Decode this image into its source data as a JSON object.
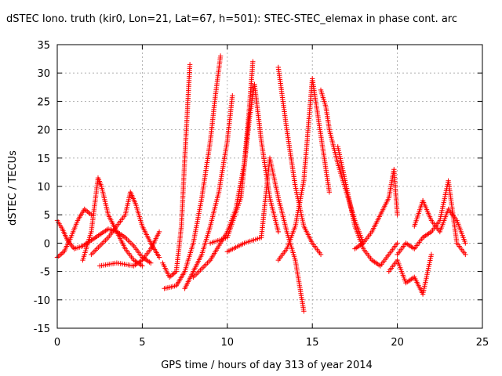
{
  "chart_data": {
    "type": "scatter",
    "title": "dSTEC Iono. truth (kir0, Lon=21, Lat=67, h=501): STEC-STEC_elemax in phase cont. arc",
    "xlabel": "GPS time / hours of day 313 of year 2014",
    "ylabel": "dSTEC  / TECUs",
    "xlim": [
      0,
      25
    ],
    "ylim": [
      -15,
      35
    ],
    "xticks": [
      0,
      5,
      10,
      15,
      20,
      25
    ],
    "yticks": [
      -15,
      -10,
      -5,
      0,
      5,
      10,
      15,
      20,
      25,
      30,
      35
    ],
    "grid": true,
    "marker": "+",
    "color": "#ff0000",
    "series": [
      {
        "x": [
          0.0,
          0.3,
          0.6,
          1.0,
          1.5,
          2.0,
          2.5,
          3.0,
          3.5,
          4.0,
          4.5,
          5.0,
          5.5
        ],
        "y": [
          4.0,
          2.5,
          0.5,
          -1.0,
          -0.5,
          0.5,
          1.5,
          2.5,
          2.0,
          1.0,
          -0.5,
          -2.5,
          -3.5
        ]
      },
      {
        "x": [
          0.0,
          0.4,
          0.8,
          1.2,
          1.6,
          2.0
        ],
        "y": [
          -2.5,
          -1.5,
          1.0,
          4.0,
          6.0,
          5.0
        ]
      },
      {
        "x": [
          1.5,
          2.0,
          2.4,
          2.6,
          3.0,
          3.5,
          4.0,
          4.5,
          5.0
        ],
        "y": [
          -3.0,
          2.0,
          11.5,
          10.0,
          5.0,
          2.0,
          -1.0,
          -3.0,
          -4.0
        ]
      },
      {
        "x": [
          2.0,
          3.0,
          4.0,
          4.3,
          4.6,
          5.0,
          5.5,
          6.0
        ],
        "y": [
          -2.0,
          1.0,
          5.0,
          9.0,
          7.0,
          3.0,
          0.0,
          -2.5
        ]
      },
      {
        "x": [
          2.5,
          3.5,
          4.5,
          5.0,
          5.5,
          6.0
        ],
        "y": [
          -4.0,
          -3.5,
          -4.0,
          -3.0,
          -1.0,
          2.0
        ]
      },
      {
        "x": [
          6.2,
          6.6,
          7.0,
          7.3,
          7.5,
          7.8
        ],
        "y": [
          -3.5,
          -6.0,
          -5.0,
          3.0,
          15.0,
          31.5
        ]
      },
      {
        "x": [
          6.3,
          7.0,
          7.5,
          8.0,
          8.5,
          9.0,
          9.3,
          9.6
        ],
        "y": [
          -8.0,
          -7.5,
          -5.0,
          0.0,
          8.0,
          18.0,
          26.0,
          33.0
        ]
      },
      {
        "x": [
          7.5,
          8.0,
          8.5,
          9.0,
          9.5,
          10.0,
          10.3
        ],
        "y": [
          -8.0,
          -5.0,
          -2.0,
          3.0,
          9.0,
          18.0,
          26.0
        ]
      },
      {
        "x": [
          8.0,
          9.0,
          10.0,
          10.5,
          11.0,
          11.3,
          11.5
        ],
        "y": [
          -6.0,
          -3.0,
          2.0,
          6.0,
          14.0,
          24.0,
          32.0
        ]
      },
      {
        "x": [
          9.0,
          10.0,
          10.8,
          11.3,
          11.6,
          12.0,
          12.5,
          13.0
        ],
        "y": [
          0.0,
          1.0,
          8.0,
          22.0,
          28.0,
          18.0,
          8.0,
          2.0
        ]
      },
      {
        "x": [
          10.0,
          11.0,
          12.0,
          12.5,
          13.0,
          13.5,
          14.0,
          14.5
        ],
        "y": [
          -1.5,
          0.0,
          1.0,
          15.0,
          8.0,
          2.0,
          -3.0,
          -12.0
        ]
      },
      {
        "x": [
          13.0,
          13.5,
          14.0,
          14.5,
          15.0,
          15.5
        ],
        "y": [
          31.0,
          20.0,
          10.0,
          3.0,
          0.0,
          -2.0
        ]
      },
      {
        "x": [
          13.0,
          13.5,
          14.0,
          14.5,
          15.0,
          15.5,
          16.0
        ],
        "y": [
          -3.0,
          -1.0,
          3.0,
          11.0,
          29.0,
          19.0,
          9.0
        ]
      },
      {
        "x": [
          15.5,
          15.8,
          16.0,
          16.5,
          17.0,
          17.5,
          18.0
        ],
        "y": [
          27.0,
          24.0,
          20.0,
          14.0,
          9.0,
          4.0,
          0.0
        ]
      },
      {
        "x": [
          16.5,
          17.0,
          17.5,
          18.0,
          18.5,
          19.0,
          19.5,
          20.0
        ],
        "y": [
          17.0,
          10.0,
          3.0,
          -1.0,
          -3.0,
          -4.0,
          -2.0,
          0.0
        ]
      },
      {
        "x": [
          17.5,
          18.0,
          18.5,
          19.0,
          19.5,
          19.8,
          20.0
        ],
        "y": [
          -1.0,
          0.0,
          2.0,
          5.0,
          8.0,
          13.0,
          5.0
        ]
      },
      {
        "x": [
          19.5,
          20.0,
          20.5,
          21.0,
          21.5,
          22.0
        ],
        "y": [
          -5.0,
          -3.0,
          -7.0,
          -6.0,
          -9.0,
          -2.0
        ]
      },
      {
        "x": [
          21.0,
          21.5,
          22.0,
          22.5,
          23.0,
          23.5,
          24.0
        ],
        "y": [
          3.0,
          7.5,
          4.0,
          2.0,
          6.0,
          4.0,
          0.0
        ]
      },
      {
        "x": [
          20.0,
          20.5,
          21.0,
          21.5,
          22.0,
          22.5,
          23.0,
          23.5,
          24.0
        ],
        "y": [
          -2.0,
          0.0,
          -1.0,
          1.0,
          2.0,
          4.0,
          11.0,
          0.0,
          -2.0
        ]
      }
    ]
  }
}
